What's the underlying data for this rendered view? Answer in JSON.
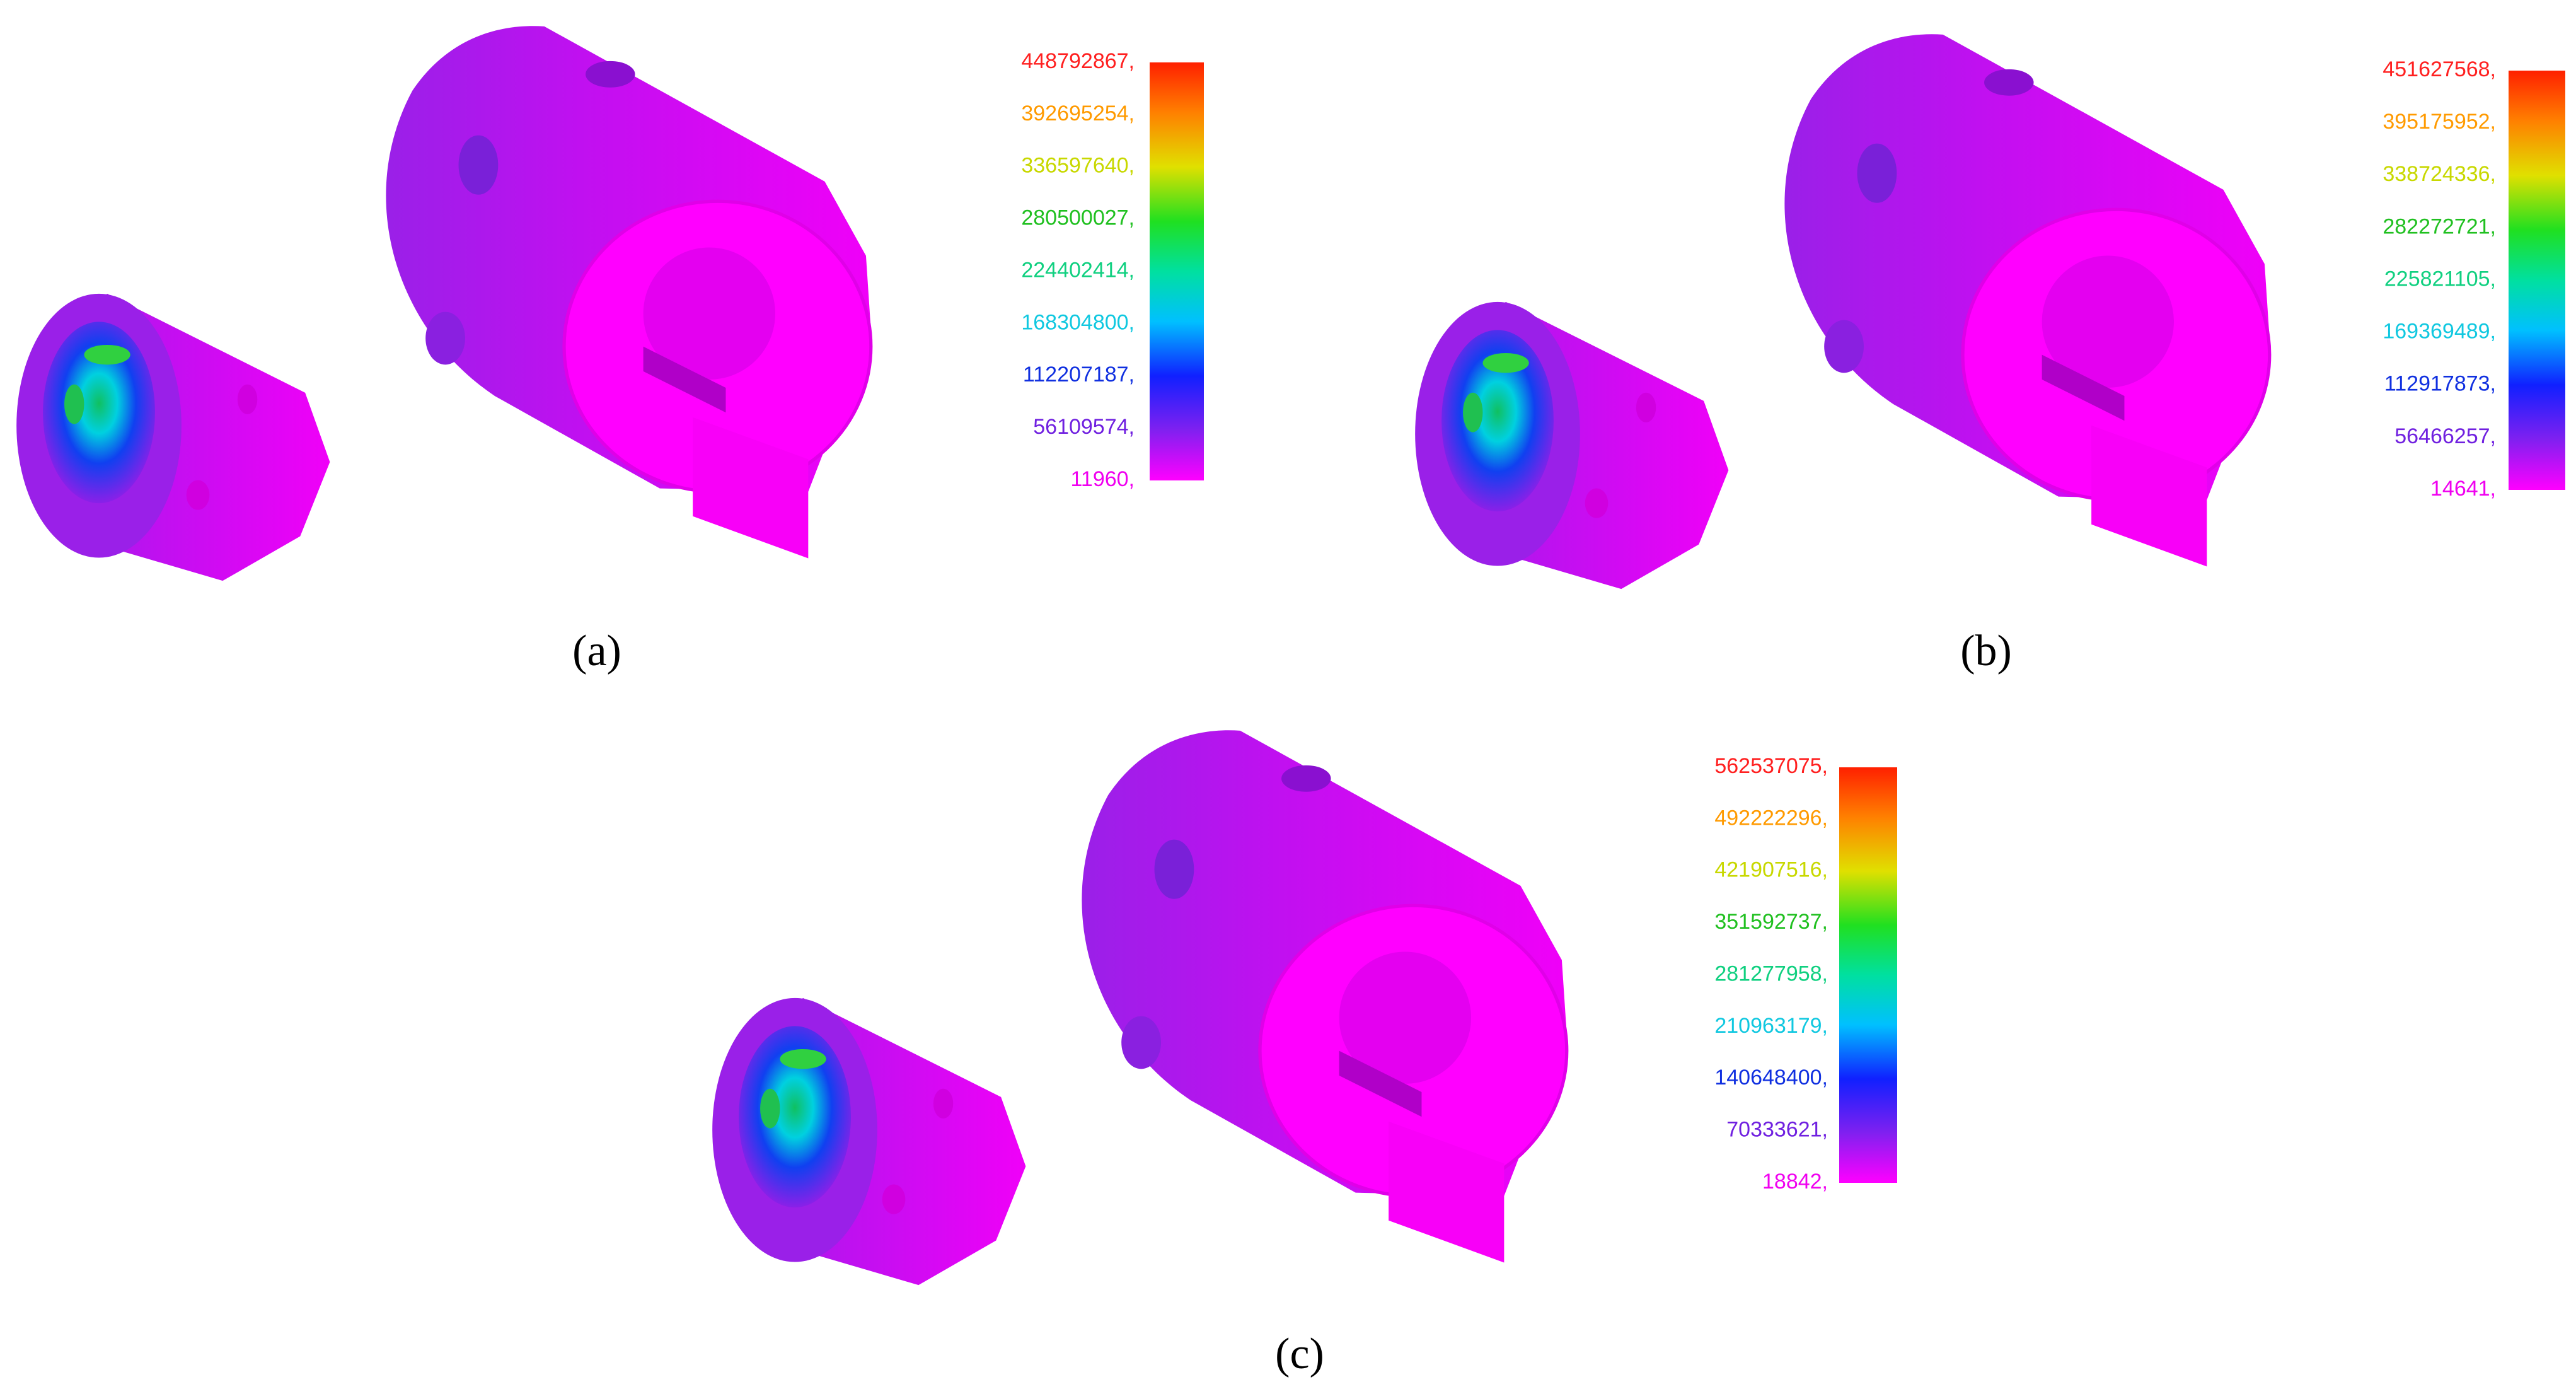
{
  "panels": [
    {
      "caption": "(a)",
      "legend": {
        "labels": [
          "448792867,",
          "392695254,",
          "336597640,",
          "280500027,",
          "224402414,",
          "168304800,",
          "112207187,",
          "56109574,",
          "11960,"
        ]
      }
    },
    {
      "caption": "(b)",
      "legend": {
        "labels": [
          "451627568,",
          "395175952,",
          "338724336,",
          "282272721,",
          "225821105,",
          "169369489,",
          "112917873,",
          "56466257,",
          "14641,"
        ]
      }
    },
    {
      "caption": "(c)",
      "legend": {
        "labels": [
          "562537075,",
          "492222296,",
          "421907516,",
          "351592737,",
          "281277958,",
          "210963179,",
          "140648400,",
          "70333621,",
          "18842,"
        ]
      }
    }
  ],
  "legend_colors": [
    "#ff2020",
    "#ff9a00",
    "#c8d800",
    "#20c020",
    "#10d080",
    "#10c8e0",
    "#1030e0",
    "#7020e0",
    "#f000f0"
  ]
}
